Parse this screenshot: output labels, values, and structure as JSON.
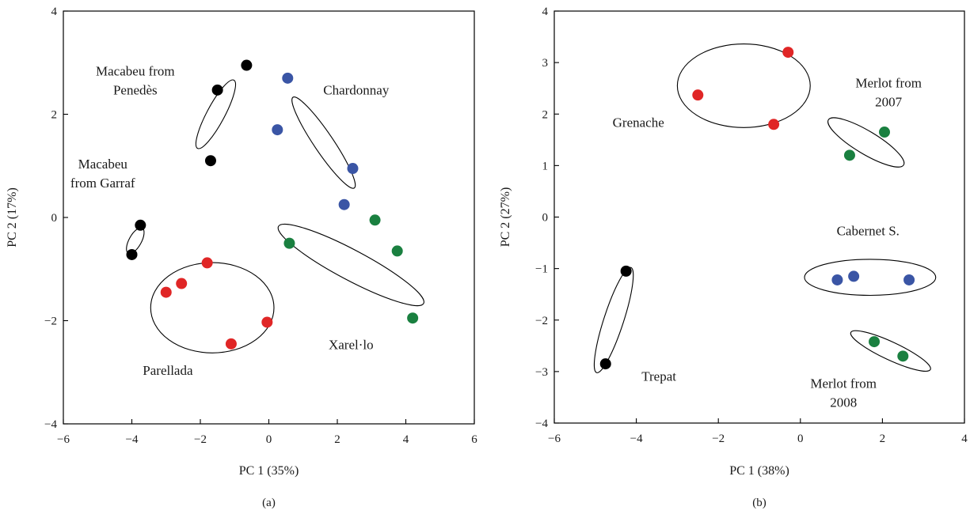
{
  "chart_data": [
    {
      "type": "scatter",
      "panel_label": "(a)",
      "xlabel": "PC 1 (35%)",
      "ylabel": "PC 2 (17%)",
      "xlim": [
        -6,
        6
      ],
      "ylim": [
        -4,
        4
      ],
      "xticks": [
        -6,
        -4,
        -2,
        0,
        2,
        4,
        6
      ],
      "yticks": [
        -4,
        -2,
        0,
        2,
        4
      ],
      "xtick_labels": [
        "−6",
        "−4",
        "−2",
        "0",
        "2",
        "4",
        "6"
      ],
      "ytick_labels": [
        "−4",
        "−2",
        "0",
        "2",
        "4"
      ],
      "grid": false,
      "groups": [
        {
          "lines": [
            "Macabeu from",
            "Penedès"
          ],
          "color": "#000000",
          "points": [
            [
              -0.65,
              2.95
            ],
            [
              -1.5,
              2.47
            ],
            [
              -1.7,
              1.1
            ]
          ],
          "ellipse": {
            "cx": -1.55,
            "cy": 2.0,
            "rx": 1.13,
            "ry": 0.26,
            "angle": 62
          }
        },
        {
          "lines": [
            "Chardonnay"
          ],
          "color": "#3a55a5",
          "points": [
            [
              0.55,
              2.7
            ],
            [
              0.25,
              1.7
            ],
            [
              2.45,
              0.95
            ],
            [
              2.2,
              0.25
            ]
          ],
          "ellipse": {
            "cx": 1.6,
            "cy": 1.45,
            "rx": 1.6,
            "ry": 0.28,
            "angle": -56
          }
        },
        {
          "lines": [
            "Macabeu",
            "from Garraf"
          ],
          "color": "#000000",
          "points": [
            [
              -3.75,
              -0.15
            ],
            [
              -4.0,
              -0.72
            ]
          ],
          "ellipse": {
            "cx": -3.9,
            "cy": -0.45,
            "rx": 0.42,
            "ry": 0.18,
            "angle": 61
          }
        },
        {
          "lines": [
            "Parellada"
          ],
          "color": "#e02626",
          "points": [
            [
              -1.8,
              -0.88
            ],
            [
              -2.55,
              -1.28
            ],
            [
              -3.0,
              -1.45
            ],
            [
              -0.05,
              -2.03
            ],
            [
              -1.1,
              -2.45
            ]
          ],
          "ellipse": {
            "cx": -1.65,
            "cy": -1.75,
            "rx": 1.8,
            "ry": 1.32,
            "angle": 0
          }
        },
        {
          "lines": [
            "Xarel·lo"
          ],
          "color": "#1a8040",
          "points": [
            [
              3.1,
              -0.05
            ],
            [
              0.6,
              -0.5
            ],
            [
              3.75,
              -0.65
            ],
            [
              4.2,
              -1.95
            ]
          ],
          "ellipse": {
            "cx": 2.4,
            "cy": -0.92,
            "rx": 2.4,
            "ry": 0.44,
            "angle": -28
          }
        }
      ],
      "annotations": [
        {
          "lines": [
            "Macabeu from",
            "Penedès"
          ],
          "x": -3.9,
          "y": 2.75
        },
        {
          "lines": [
            "Chardonnay"
          ],
          "x": 2.55,
          "y": 2.38
        },
        {
          "lines": [
            "Macabeu",
            "from Garraf"
          ],
          "x": -4.85,
          "y": 0.95
        },
        {
          "lines": [
            "Parellada"
          ],
          "x": -2.95,
          "y": -3.05
        },
        {
          "lines": [
            "Xarel·lo"
          ],
          "x": 2.4,
          "y": -2.55
        }
      ]
    },
    {
      "type": "scatter",
      "panel_label": "(b)",
      "xlabel": "PC 1 (38%)",
      "ylabel": "PC 2 (27%)",
      "xlim": [
        -6,
        4
      ],
      "ylim": [
        -4,
        4
      ],
      "xticks": [
        -6,
        -4,
        -2,
        0,
        2,
        4
      ],
      "yticks": [
        -4,
        -3,
        -2,
        -1,
        0,
        1,
        2,
        3,
        4
      ],
      "xtick_labels": [
        "−6",
        "−4",
        "−2",
        "0",
        "2",
        "4"
      ],
      "ytick_labels": [
        "−4",
        "−3",
        "−2",
        "−1",
        "0",
        "1",
        "2",
        "3",
        "4"
      ],
      "grid": false,
      "groups": [
        {
          "lines": [
            "Grenache"
          ],
          "color": "#e02626",
          "points": [
            [
              -0.3,
              3.2
            ],
            [
              -2.5,
              2.37
            ],
            [
              -0.65,
              1.8
            ]
          ],
          "ellipse": {
            "cx": -1.38,
            "cy": 2.55,
            "rx": 1.62,
            "ry": 1.02,
            "angle": 0
          }
        },
        {
          "lines": [
            "Merlot from",
            "2007"
          ],
          "color": "#1a8040",
          "points": [
            [
              2.05,
              1.65
            ],
            [
              1.2,
              1.2
            ]
          ],
          "ellipse": {
            "cx": 1.6,
            "cy": 1.45,
            "rx": 1.07,
            "ry": 0.28,
            "angle": -31
          }
        },
        {
          "lines": [
            "Cabernet S."
          ],
          "color": "#3a55a5",
          "points": [
            [
              0.9,
              -1.22
            ],
            [
              1.3,
              -1.15
            ],
            [
              2.65,
              -1.22
            ]
          ],
          "ellipse": {
            "cx": 1.7,
            "cy": -1.17,
            "rx": 1.6,
            "ry": 0.44,
            "angle": 0
          }
        },
        {
          "lines": [
            "Merlot from",
            "2008"
          ],
          "color": "#1a8040",
          "points": [
            [
              1.8,
              -2.42
            ],
            [
              2.5,
              -2.7
            ]
          ],
          "ellipse": {
            "cx": 2.2,
            "cy": -2.6,
            "rx": 1.07,
            "ry": 0.22,
            "angle": -25
          }
        },
        {
          "lines": [
            "Trepat"
          ],
          "color": "#000000",
          "points": [
            [
              -4.25,
              -1.05
            ],
            [
              -4.75,
              -2.85
            ]
          ],
          "ellipse": {
            "cx": -4.55,
            "cy": -2.0,
            "rx": 1.35,
            "ry": 0.24,
            "angle": 72
          }
        }
      ],
      "annotations": [
        {
          "lines": [
            "Grenache"
          ],
          "x": -3.95,
          "y": 1.75
        },
        {
          "lines": [
            "Merlot from",
            "2007"
          ],
          "x": 2.15,
          "y": 2.52
        },
        {
          "lines": [
            "Cabernet S."
          ],
          "x": 1.65,
          "y": -0.35
        },
        {
          "lines": [
            "Merlot from",
            "2008"
          ],
          "x": 1.05,
          "y": -3.32
        },
        {
          "lines": [
            "Trepat"
          ],
          "x": -3.45,
          "y": -3.18
        }
      ]
    }
  ]
}
